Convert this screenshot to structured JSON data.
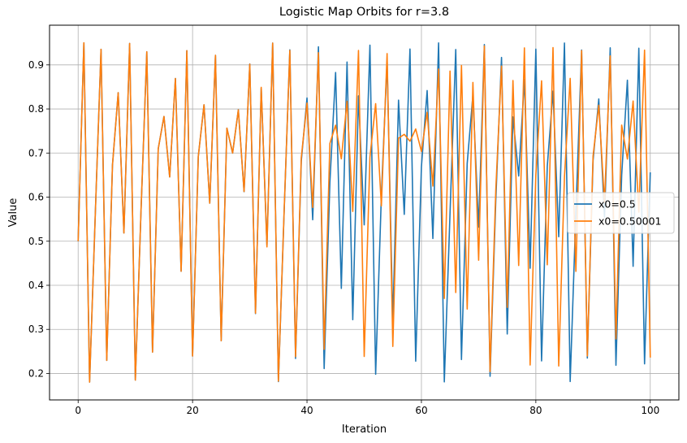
{
  "chart_data": {
    "type": "line",
    "title": "Logistic Map Orbits for r=3.8",
    "xlabel": "Iteration",
    "ylabel": "Value",
    "xlim": [
      -5,
      105
    ],
    "ylim": [
      0.14,
      0.99
    ],
    "xticks": [
      0,
      20,
      40,
      60,
      80,
      100
    ],
    "xtick_labels": [
      "0",
      "20",
      "40",
      "60",
      "80",
      "100"
    ],
    "yticks": [
      0.2,
      0.3,
      0.4,
      0.5,
      0.6,
      0.7,
      0.8,
      0.9
    ],
    "ytick_labels": [
      "0.2",
      "0.3",
      "0.4",
      "0.5",
      "0.6",
      "0.7",
      "0.8",
      "0.9"
    ],
    "grid": true,
    "legend_position": "center-right",
    "r": 3.8,
    "iterations": 100,
    "series": [
      {
        "name": "x0=0.5",
        "x0": 0.5,
        "color": "#1f77b4"
      },
      {
        "name": "x0=0.50001",
        "x0": 0.50001,
        "color": "#ff7f0e"
      }
    ]
  }
}
